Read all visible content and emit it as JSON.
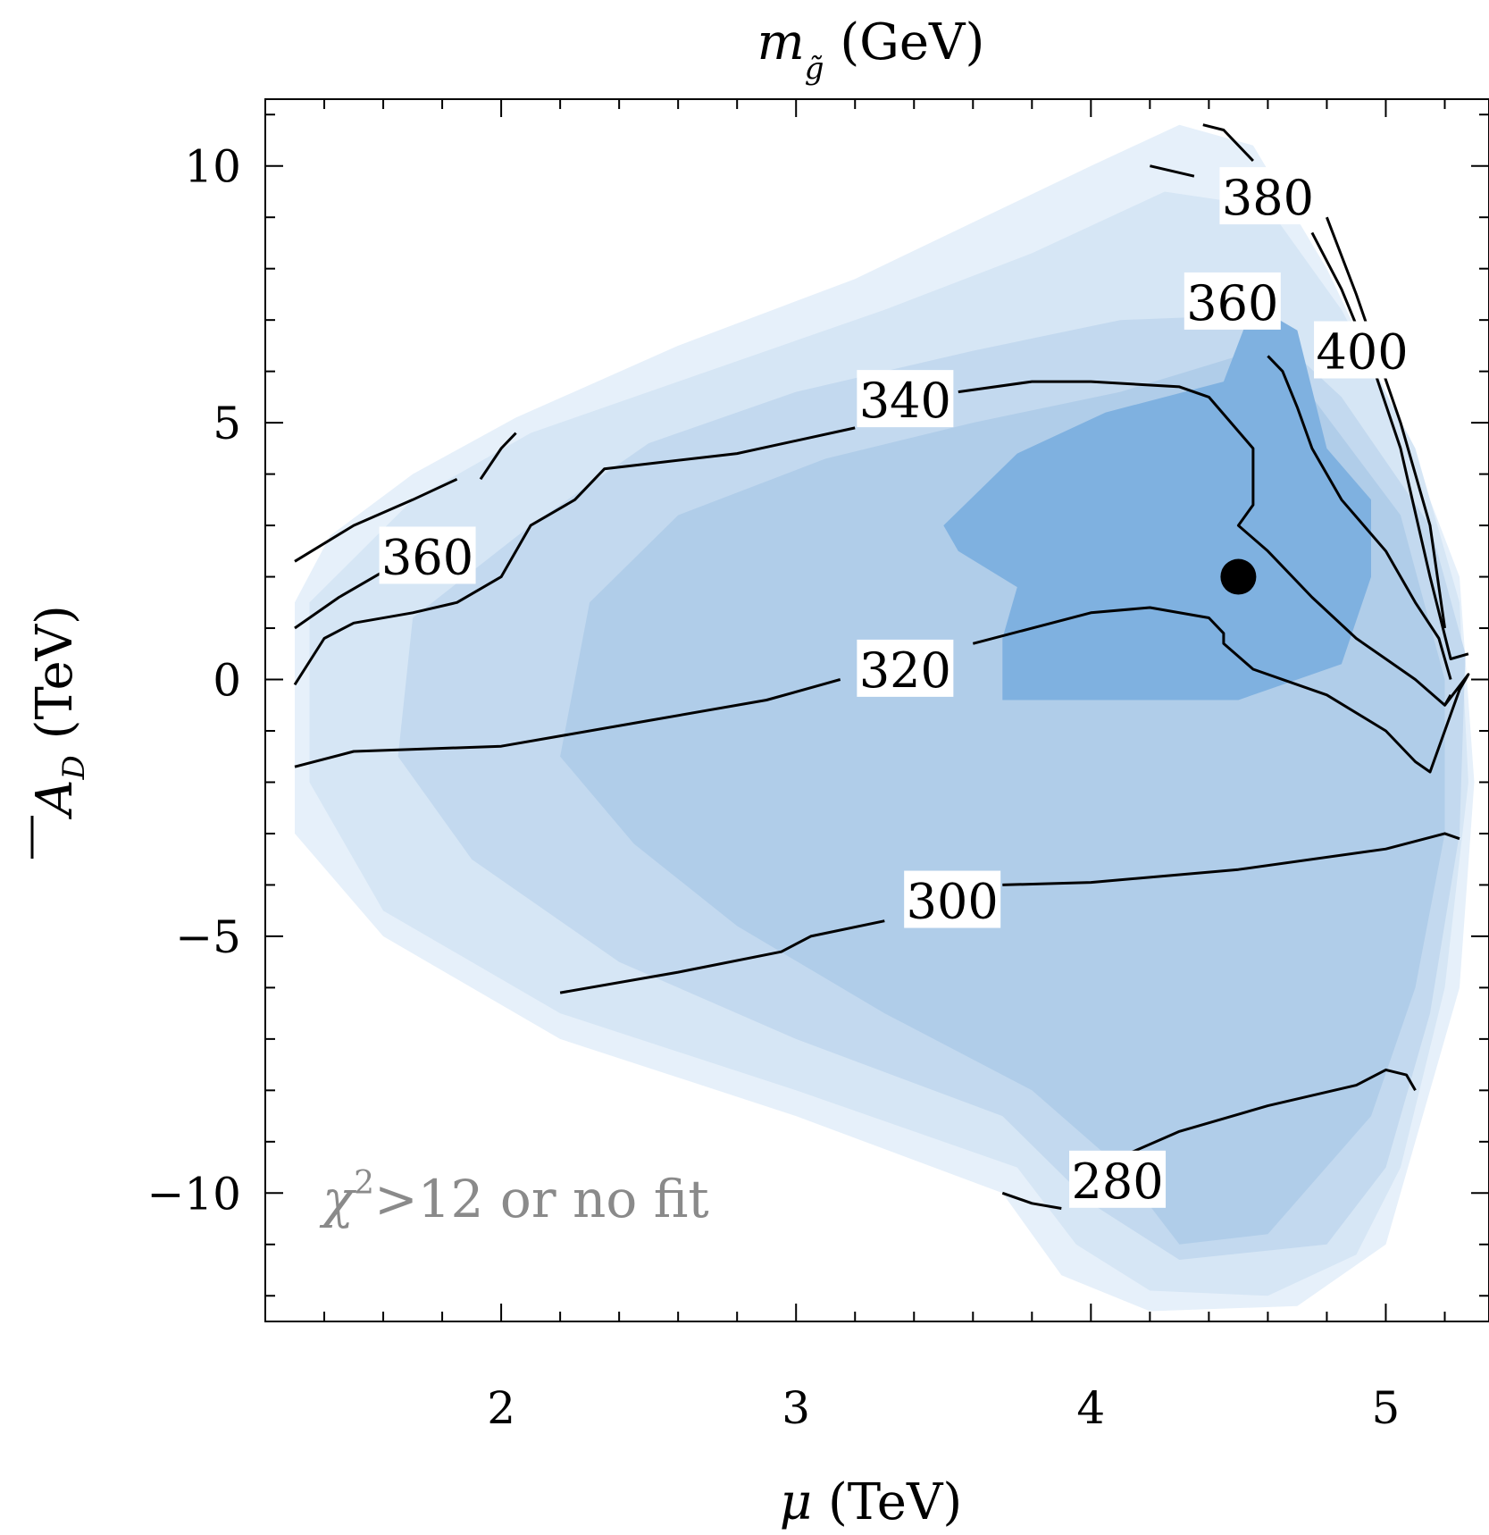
{
  "chart_data": {
    "type": "contour",
    "title": "m_g̃ (GeV)",
    "title_main": "m",
    "title_sub": "g̃",
    "title_unit": " (GeV)",
    "xlabel": "μ (TeV)",
    "xlabel_main": "μ",
    "xlabel_unit": " (TeV)",
    "ylabel": "Ā_D (TeV)",
    "ylabel_main": "A",
    "ylabel_sub": "D",
    "ylabel_unit": " (TeV)",
    "xlim": [
      1.2,
      5.35
    ],
    "ylim": [
      -12.5,
      11.3
    ],
    "xticks": [
      2,
      3,
      4,
      5
    ],
    "xtick_labels": [
      "2",
      "3",
      "4",
      "5"
    ],
    "yticks": [
      -10,
      -5,
      0,
      5,
      10
    ],
    "ytick_labels": [
      "−10",
      "−5",
      "0",
      "5",
      "10"
    ],
    "annotation": "χ²>12 or no fit",
    "annotation_main": "χ",
    "annotation_sup": "2",
    "annotation_rest": ">12 or no fit",
    "best_fit_point": {
      "x": 4.5,
      "y": 2.0
    },
    "fill_colors": [
      "#e6f0fa",
      "#d6e6f5",
      "#c3d9ef",
      "#b0cde9",
      "#7fb1e0"
    ],
    "regions": [
      {
        "level": 0,
        "polygon": [
          [
            1.3,
            -2.2
          ],
          [
            1.3,
            -0.5
          ],
          [
            1.3,
            1.5
          ],
          [
            1.42,
            2.8
          ],
          [
            1.7,
            4.0
          ],
          [
            2.05,
            5.1
          ],
          [
            2.6,
            6.5
          ],
          [
            3.2,
            7.8
          ],
          [
            3.6,
            8.9
          ],
          [
            4.0,
            10.0
          ],
          [
            4.3,
            10.8
          ],
          [
            4.55,
            10.4
          ],
          [
            4.8,
            8.0
          ],
          [
            5.05,
            5.0
          ],
          [
            5.25,
            2.0
          ],
          [
            5.3,
            -2.0
          ],
          [
            5.25,
            -6.0
          ],
          [
            5.1,
            -9.0
          ],
          [
            5.0,
            -11.0
          ],
          [
            4.7,
            -12.2
          ],
          [
            4.2,
            -12.3
          ],
          [
            3.9,
            -11.6
          ],
          [
            3.7,
            -10.0
          ],
          [
            3.0,
            -8.5
          ],
          [
            2.2,
            -7.0
          ],
          [
            1.6,
            -5.0
          ],
          [
            1.3,
            -3.0
          ]
        ]
      },
      {
        "level": 1,
        "polygon": [
          [
            1.35,
            -2.0
          ],
          [
            1.35,
            1.5
          ],
          [
            1.7,
            3.5
          ],
          [
            2.1,
            4.8
          ],
          [
            2.7,
            6.0
          ],
          [
            3.3,
            7.2
          ],
          [
            3.8,
            8.3
          ],
          [
            4.25,
            9.5
          ],
          [
            4.6,
            9.2
          ],
          [
            4.85,
            7.2
          ],
          [
            5.1,
            4.5
          ],
          [
            5.25,
            1.5
          ],
          [
            5.28,
            -2.0
          ],
          [
            5.2,
            -6.0
          ],
          [
            5.05,
            -9.5
          ],
          [
            4.9,
            -11.2
          ],
          [
            4.6,
            -12.0
          ],
          [
            4.2,
            -11.9
          ],
          [
            3.95,
            -11.0
          ],
          [
            3.75,
            -9.5
          ],
          [
            3.0,
            -8.0
          ],
          [
            2.2,
            -6.5
          ],
          [
            1.6,
            -4.5
          ]
        ]
      },
      {
        "level": 2,
        "polygon": [
          [
            1.65,
            -1.5
          ],
          [
            1.7,
            1.2
          ],
          [
            2.1,
            3.0
          ],
          [
            2.5,
            4.6
          ],
          [
            3.0,
            5.6
          ],
          [
            3.6,
            6.4
          ],
          [
            4.1,
            7.0
          ],
          [
            4.55,
            7.1
          ],
          [
            4.85,
            5.5
          ],
          [
            5.15,
            3.0
          ],
          [
            5.27,
            0.5
          ],
          [
            5.25,
            -3.0
          ],
          [
            5.15,
            -6.5
          ],
          [
            5.0,
            -9.5
          ],
          [
            4.8,
            -11.0
          ],
          [
            4.3,
            -11.3
          ],
          [
            4.0,
            -10.2
          ],
          [
            3.7,
            -8.5
          ],
          [
            3.0,
            -7.0
          ],
          [
            2.4,
            -5.5
          ],
          [
            1.9,
            -3.5
          ]
        ]
      },
      {
        "level": 3,
        "polygon": [
          [
            2.2,
            -1.5
          ],
          [
            2.3,
            1.5
          ],
          [
            2.6,
            3.2
          ],
          [
            3.1,
            4.3
          ],
          [
            3.6,
            5.0
          ],
          [
            4.1,
            5.6
          ],
          [
            4.5,
            6.3
          ],
          [
            4.75,
            5.5
          ],
          [
            5.05,
            3.2
          ],
          [
            5.2,
            0.0
          ],
          [
            5.2,
            -3.0
          ],
          [
            5.1,
            -6.0
          ],
          [
            4.95,
            -8.5
          ],
          [
            4.6,
            -10.8
          ],
          [
            4.3,
            -11.0
          ],
          [
            4.1,
            -9.5
          ],
          [
            3.8,
            -8.0
          ],
          [
            3.3,
            -6.5
          ],
          [
            2.8,
            -4.8
          ],
          [
            2.45,
            -3.2
          ]
        ]
      },
      {
        "level": 4,
        "polygon": [
          [
            3.5,
            3.0
          ],
          [
            3.75,
            4.4
          ],
          [
            4.05,
            5.2
          ],
          [
            4.45,
            5.8
          ],
          [
            4.55,
            7.3
          ],
          [
            4.7,
            6.8
          ],
          [
            4.8,
            4.5
          ],
          [
            4.95,
            3.5
          ],
          [
            4.95,
            2.0
          ],
          [
            4.85,
            0.3
          ],
          [
            4.5,
            -0.4
          ],
          [
            3.7,
            -0.4
          ],
          [
            3.7,
            0.8
          ],
          [
            3.75,
            1.8
          ],
          [
            3.55,
            2.5
          ]
        ]
      }
    ],
    "contours": [
      {
        "level": 280,
        "label": "280",
        "label_at": {
          "x": 4.09,
          "y": -9.8
        },
        "segments": [
          [
            [
              3.7,
              -10.0
            ],
            [
              3.8,
              -10.2
            ],
            [
              3.9,
              -10.3
            ]
          ],
          [
            [
              4.1,
              -9.3
            ],
            [
              4.3,
              -8.8
            ],
            [
              4.6,
              -8.3
            ],
            [
              4.9,
              -7.9
            ],
            [
              5.0,
              -7.6
            ],
            [
              5.07,
              -7.7
            ],
            [
              5.1,
              -8.0
            ]
          ]
        ]
      },
      {
        "level": 300,
        "label": "300",
        "label_at": {
          "x": 3.53,
          "y": -4.35
        },
        "segments": [
          [
            [
              2.2,
              -6.1
            ],
            [
              2.6,
              -5.7
            ],
            [
              2.95,
              -5.3
            ],
            [
              3.05,
              -5.0
            ],
            [
              3.3,
              -4.7
            ]
          ],
          [
            [
              3.7,
              -4.0
            ],
            [
              4.0,
              -3.95
            ],
            [
              4.5,
              -3.7
            ],
            [
              5.0,
              -3.3
            ],
            [
              5.2,
              -3.0
            ],
            [
              5.25,
              -3.1
            ]
          ]
        ]
      },
      {
        "level": 320,
        "label": "320",
        "label_at": {
          "x": 3.37,
          "y": 0.15
        },
        "segments": [
          [
            [
              1.3,
              -1.7
            ],
            [
              1.5,
              -1.4
            ],
            [
              2.0,
              -1.3
            ],
            [
              2.5,
              -0.8
            ],
            [
              2.9,
              -0.4
            ],
            [
              3.15,
              0.0
            ]
          ],
          [
            [
              3.6,
              0.7
            ],
            [
              4.0,
              1.3
            ],
            [
              4.2,
              1.4
            ],
            [
              4.4,
              1.2
            ],
            [
              4.45,
              0.9
            ],
            [
              4.45,
              0.7
            ],
            [
              4.55,
              0.2
            ],
            [
              4.8,
              -0.3
            ],
            [
              5.0,
              -1.0
            ],
            [
              5.1,
              -1.6
            ],
            [
              5.15,
              -1.8
            ],
            [
              5.2,
              -1.0
            ],
            [
              5.25,
              -0.2
            ],
            [
              5.28,
              0.1
            ],
            [
              5.2,
              -0.5
            ]
          ]
        ]
      },
      {
        "level": 340,
        "label": "340",
        "label_at": {
          "x": 3.37,
          "y": 5.4
        },
        "segments": [
          [
            [
              1.3,
              -0.1
            ],
            [
              1.4,
              0.8
            ],
            [
              1.5,
              1.1
            ],
            [
              1.7,
              1.3
            ],
            [
              1.85,
              1.5
            ],
            [
              2.0,
              2.0
            ],
            [
              2.1,
              3.0
            ],
            [
              2.25,
              3.5
            ],
            [
              2.35,
              4.1
            ],
            [
              2.8,
              4.4
            ],
            [
              3.2,
              4.9
            ]
          ],
          [
            [
              3.55,
              5.6
            ],
            [
              3.8,
              5.8
            ],
            [
              4.0,
              5.8
            ],
            [
              4.3,
              5.7
            ],
            [
              4.4,
              5.5
            ],
            [
              4.55,
              4.5
            ],
            [
              4.55,
              3.4
            ],
            [
              4.5,
              3.0
            ],
            [
              4.6,
              2.5
            ],
            [
              4.75,
              1.6
            ],
            [
              4.9,
              0.8
            ],
            [
              5.0,
              0.4
            ],
            [
              5.1,
              0.0
            ],
            [
              5.2,
              -0.5
            ],
            [
              5.22,
              -0.3
            ]
          ]
        ]
      },
      {
        "level": 360,
        "label": "360",
        "label_at": {
          "x": 1.75,
          "y": 2.35
        },
        "segments": [
          [
            [
              1.3,
              1.0
            ],
            [
              1.45,
              1.6
            ],
            [
              1.6,
              2.1
            ]
          ],
          [
            [
              1.3,
              2.3
            ],
            [
              1.5,
              3.0
            ],
            [
              1.7,
              3.5
            ],
            [
              1.85,
              3.9
            ]
          ],
          [
            [
              1.93,
              3.9
            ],
            [
              2.0,
              4.5
            ],
            [
              2.05,
              4.8
            ]
          ]
        ]
      },
      {
        "level": 360,
        "label": "360",
        "label_at": {
          "x": 4.48,
          "y": 7.3
        },
        "segments": [
          [
            [
              4.6,
              6.3
            ],
            [
              4.65,
              6.0
            ],
            [
              4.7,
              5.3
            ],
            [
              4.75,
              4.5
            ],
            [
              4.85,
              3.5
            ],
            [
              5.0,
              2.5
            ],
            [
              5.1,
              1.5
            ],
            [
              5.18,
              0.8
            ],
            [
              5.22,
              0.0
            ]
          ]
        ]
      },
      {
        "level": 380,
        "label": "380",
        "label_at": {
          "x": 4.6,
          "y": 9.35
        },
        "segments": [
          [
            [
              4.2,
              10.0
            ],
            [
              4.35,
              9.8
            ]
          ],
          [
            [
              4.38,
              10.8
            ],
            [
              4.45,
              10.7
            ],
            [
              4.55,
              10.1
            ]
          ],
          [
            [
              4.75,
              8.7
            ],
            [
              4.85,
              7.6
            ],
            [
              4.95,
              6.2
            ],
            [
              5.05,
              4.5
            ],
            [
              5.15,
              2.0
            ],
            [
              5.22,
              0.4
            ],
            [
              5.28,
              0.5
            ]
          ]
        ]
      },
      {
        "level": 400,
        "label": "400",
        "label_at": {
          "x": 4.92,
          "y": 6.35
        },
        "segments": [
          [
            [
              4.8,
              9.0
            ],
            [
              4.9,
              7.5
            ],
            [
              5.05,
              5.0
            ],
            [
              5.15,
              3.0
            ],
            [
              5.2,
              1.0
            ]
          ]
        ]
      }
    ]
  }
}
